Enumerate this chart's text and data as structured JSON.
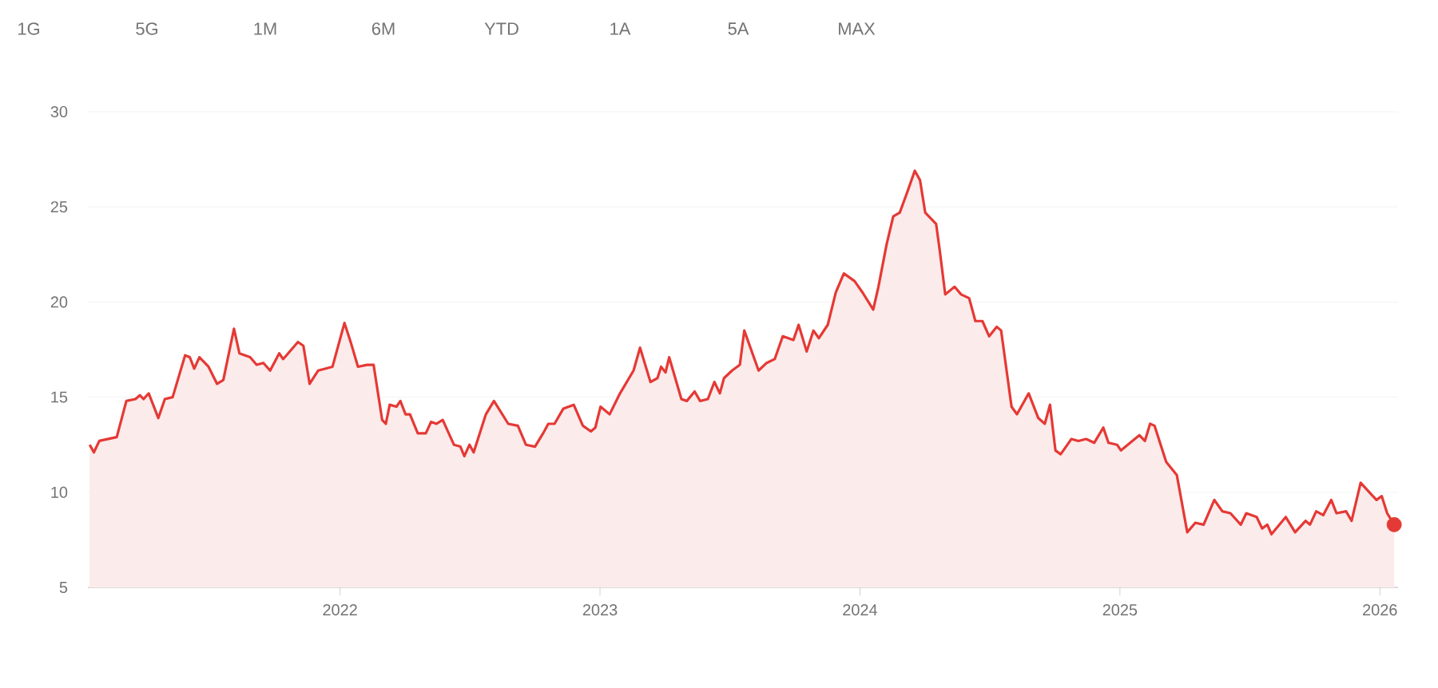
{
  "chart_data": {
    "type": "area",
    "annotations": [
      "1G",
      "5G",
      "1M",
      "6M",
      "YTD",
      "1A",
      "5A",
      "MAX"
    ],
    "xlim": [
      2021.03,
      2026.07
    ],
    "ylim": [
      5,
      30
    ],
    "xticks": [
      2022,
      2023,
      2024,
      2025,
      2026
    ],
    "yticks": [
      5,
      10,
      15,
      20,
      25,
      30
    ],
    "grid": "y",
    "series": [
      {
        "color": "#e53935",
        "x": [
          2021.037,
          2021.053,
          2021.074,
          2021.141,
          2021.178,
          2021.213,
          2021.23,
          2021.244,
          2021.264,
          2021.301,
          2021.326,
          2021.356,
          2021.404,
          2021.422,
          2021.439,
          2021.459,
          2021.494,
          2021.527,
          2021.551,
          2021.592,
          2021.613,
          2021.654,
          2021.679,
          2021.705,
          2021.731,
          2021.766,
          2021.781,
          2021.838,
          2021.859,
          2021.883,
          2021.916,
          2021.971,
          2022.017,
          2022.043,
          2022.069,
          2022.104,
          2022.129,
          2022.162,
          2022.176,
          2022.191,
          2022.217,
          2022.232,
          2022.252,
          2022.269,
          2022.299,
          2022.33,
          2022.35,
          2022.371,
          2022.395,
          2022.438,
          2022.463,
          2022.478,
          2022.498,
          2022.514,
          2022.561,
          2022.592,
          2022.647,
          2022.684,
          2022.715,
          2022.75,
          2022.781,
          2022.801,
          2022.825,
          2022.859,
          2022.899,
          2022.934,
          2022.965,
          2022.982,
          2023.002,
          2023.037,
          2023.077,
          2023.129,
          2023.154,
          2023.194,
          2023.221,
          2023.235,
          2023.252,
          2023.266,
          2023.313,
          2023.334,
          2023.364,
          2023.385,
          2023.415,
          2023.44,
          2023.461,
          2023.477,
          2023.508,
          2023.538,
          2023.555,
          2023.61,
          2023.641,
          2023.672,
          2023.703,
          2023.744,
          2023.764,
          2023.795,
          2023.821,
          2023.842,
          2023.876,
          2023.907,
          2023.938,
          2023.979,
          2024.01,
          2024.051,
          2024.071,
          2024.102,
          2024.128,
          2024.153,
          2024.18,
          2024.211,
          2024.231,
          2024.251,
          2024.293,
          2024.307,
          2024.328,
          2024.364,
          2024.389,
          2024.42,
          2024.444,
          2024.471,
          2024.497,
          2024.526,
          2024.543,
          2024.583,
          2024.604,
          2024.649,
          2024.686,
          2024.711,
          2024.731,
          2024.752,
          2024.772,
          2024.813,
          2024.84,
          2024.87,
          2024.901,
          2024.936,
          2024.956,
          2024.989,
          2025.004,
          2025.075,
          2025.096,
          2025.116,
          2025.133,
          2025.178,
          2025.219,
          2025.259,
          2025.29,
          2025.322,
          2025.363,
          2025.394,
          2025.425,
          2025.465,
          2025.486,
          2025.526,
          2025.547,
          2025.567,
          2025.583,
          2025.638,
          2025.674,
          2025.714,
          2025.731,
          2025.755,
          2025.782,
          2025.813,
          2025.833,
          2025.87,
          2025.891,
          2025.926,
          2025.966,
          2025.987,
          2026.007,
          2026.028,
          2026.055
        ],
        "values": [
          12.5,
          12.1,
          12.7,
          12.9,
          14.8,
          14.9,
          15.1,
          14.9,
          15.2,
          13.9,
          14.9,
          15.0,
          17.2,
          17.1,
          16.5,
          17.1,
          16.6,
          15.7,
          15.9,
          18.6,
          17.3,
          17.1,
          16.7,
          16.8,
          16.4,
          17.3,
          17.0,
          17.9,
          17.7,
          15.7,
          16.4,
          16.6,
          18.9,
          17.8,
          16.6,
          16.7,
          16.7,
          13.8,
          13.6,
          14.6,
          14.5,
          14.8,
          14.1,
          14.1,
          13.1,
          13.1,
          13.7,
          13.6,
          13.8,
          12.5,
          12.4,
          11.9,
          12.5,
          12.1,
          14.1,
          14.8,
          13.6,
          13.5,
          12.5,
          12.4,
          13.1,
          13.6,
          13.6,
          14.4,
          14.6,
          13.5,
          13.2,
          13.4,
          14.5,
          14.1,
          15.2,
          16.4,
          17.6,
          15.8,
          16.0,
          16.6,
          16.3,
          17.1,
          14.9,
          14.8,
          15.3,
          14.8,
          14.9,
          15.8,
          15.2,
          16.0,
          16.4,
          16.7,
          18.5,
          16.4,
          16.8,
          17.0,
          18.2,
          18.0,
          18.8,
          17.4,
          18.5,
          18.1,
          18.8,
          20.5,
          21.5,
          21.1,
          20.5,
          19.6,
          20.8,
          23.0,
          24.5,
          24.7,
          25.7,
          26.9,
          26.4,
          24.7,
          24.1,
          22.7,
          20.4,
          20.8,
          20.4,
          20.2,
          19.0,
          19.0,
          18.2,
          18.7,
          18.5,
          14.5,
          14.1,
          15.2,
          13.9,
          13.6,
          14.6,
          12.2,
          12.0,
          12.8,
          12.7,
          12.8,
          12.6,
          13.4,
          12.6,
          12.5,
          12.2,
          13.0,
          12.7,
          13.6,
          13.5,
          11.6,
          10.9,
          7.9,
          8.4,
          8.3,
          9.6,
          9.0,
          8.9,
          8.3,
          8.9,
          8.7,
          8.1,
          8.3,
          7.8,
          8.7,
          7.9,
          8.5,
          8.3,
          9.0,
          8.8,
          9.6,
          8.9,
          9.0,
          8.5,
          10.5,
          9.9,
          9.6,
          9.8,
          8.9,
          8.3
        ]
      },
      {
        "type": "scatter",
        "marker": "circle",
        "color": "#e53935",
        "x": [
          2026.055
        ],
        "values": [
          8.3
        ]
      }
    ]
  }
}
